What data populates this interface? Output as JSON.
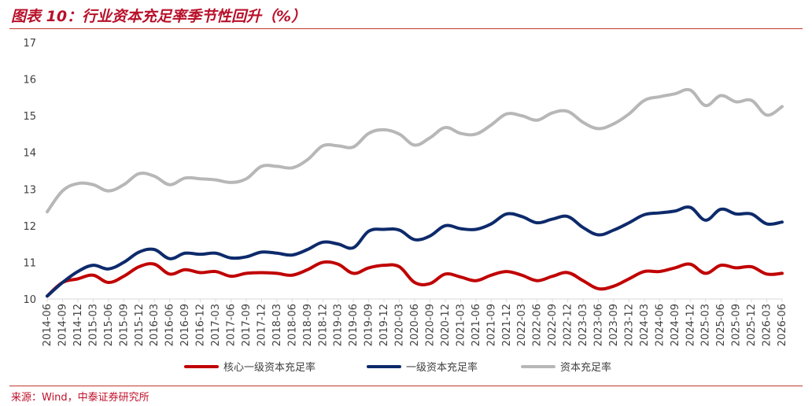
{
  "header": {
    "title": "图表 10：行业资本充足率季节性回升（%）"
  },
  "footer": {
    "source": "来源：Wind，中泰证券研究所"
  },
  "chart_data": {
    "type": "line",
    "ylim": [
      10,
      17
    ],
    "yticks": [
      10,
      11,
      12,
      13,
      14,
      15,
      16,
      17
    ],
    "x": [
      "2014-06",
      "2014-09",
      "2014-12",
      "2015-03",
      "2015-06",
      "2015-09",
      "2015-12",
      "2016-03",
      "2016-06",
      "2016-09",
      "2016-12",
      "2017-03",
      "2017-06",
      "2017-09",
      "2017-12",
      "2018-03",
      "2018-06",
      "2018-09",
      "2018-12",
      "2019-03",
      "2019-06",
      "2019-09",
      "2019-12",
      "2020-03",
      "2020-06",
      "2020-09",
      "2020-12",
      "2021-03",
      "2021-06",
      "2021-09",
      "2021-12",
      "2022-03",
      "2022-06",
      "2022-09",
      "2022-12",
      "2023-03",
      "2023-06",
      "2023-09",
      "2023-12",
      "2024-03",
      "2024-06",
      "2024-09",
      "2024-12",
      "2025-03",
      "2025-06",
      "2025-09",
      "2025-12",
      "2026-03",
      "2026-06"
    ],
    "grid": false,
    "legend_position": "bottom",
    "series": [
      {
        "name": "核心一级资本充足率",
        "color": "#c00000",
        "values": [
          10.08,
          10.45,
          10.55,
          10.65,
          10.45,
          10.62,
          10.88,
          10.95,
          10.68,
          10.8,
          10.72,
          10.75,
          10.62,
          10.7,
          10.72,
          10.7,
          10.65,
          10.8,
          11.0,
          10.95,
          10.7,
          10.85,
          10.92,
          10.88,
          10.45,
          10.42,
          10.68,
          10.6,
          10.5,
          10.65,
          10.75,
          10.65,
          10.5,
          10.62,
          10.72,
          10.5,
          10.28,
          10.35,
          10.55,
          10.75,
          10.75,
          10.85,
          10.95,
          10.7,
          10.92,
          10.85,
          10.88,
          10.68,
          10.7
        ]
      },
      {
        "name": "一级资本充足率",
        "color": "#0d2a6b",
        "values": [
          10.08,
          10.45,
          10.75,
          10.92,
          10.82,
          11.0,
          11.28,
          11.35,
          11.1,
          11.25,
          11.22,
          11.25,
          11.12,
          11.15,
          11.28,
          11.25,
          11.2,
          11.35,
          11.55,
          11.5,
          11.4,
          11.85,
          11.9,
          11.88,
          11.62,
          11.72,
          12.0,
          11.92,
          11.9,
          12.05,
          12.32,
          12.25,
          12.08,
          12.18,
          12.25,
          11.95,
          11.75,
          11.88,
          12.08,
          12.3,
          12.35,
          12.4,
          12.5,
          12.15,
          12.45,
          12.32,
          12.32,
          12.05,
          12.1
        ]
      },
      {
        "name": "资本充足率",
        "color": "#b7b7b7",
        "values": [
          12.38,
          12.95,
          13.15,
          13.12,
          12.95,
          13.12,
          13.42,
          13.35,
          13.12,
          13.3,
          13.28,
          13.25,
          13.18,
          13.28,
          13.62,
          13.62,
          13.58,
          13.8,
          14.18,
          14.18,
          14.15,
          14.52,
          14.62,
          14.5,
          14.2,
          14.4,
          14.68,
          14.52,
          14.5,
          14.75,
          15.05,
          15.0,
          14.88,
          15.08,
          15.12,
          14.82,
          14.65,
          14.78,
          15.05,
          15.42,
          15.52,
          15.6,
          15.7,
          15.28,
          15.55,
          15.38,
          15.42,
          15.02,
          15.25
        ]
      }
    ]
  }
}
